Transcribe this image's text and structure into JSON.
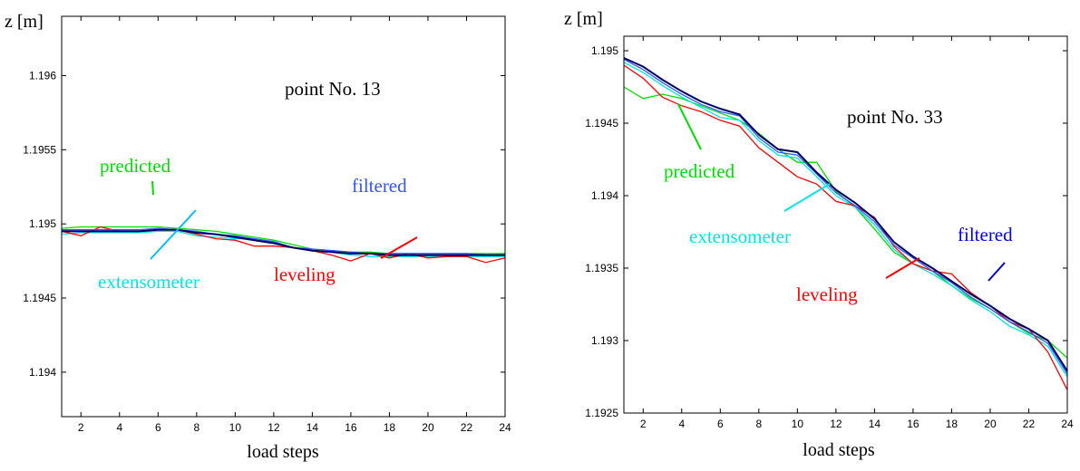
{
  "charts": [
    {
      "type": "line",
      "title": "point No. 13",
      "xlabel": "load steps",
      "ylabel": "z [m]",
      "xlim": [
        1,
        24
      ],
      "ylim": [
        1.1937,
        1.1964
      ],
      "x_ticks": [
        2,
        4,
        6,
        8,
        10,
        12,
        14,
        16,
        18,
        20,
        22,
        24
      ],
      "y_ticks": [
        1.194,
        1.1945,
        1.195,
        1.1955,
        1.196
      ],
      "y_tick_labels": [
        "1.194",
        "1.1945",
        "1.195",
        "1.1955",
        "1.196"
      ],
      "grid": false,
      "x": [
        1,
        2,
        3,
        4,
        5,
        6,
        7,
        8,
        9,
        10,
        11,
        12,
        13,
        14,
        15,
        16,
        17,
        18,
        19,
        20,
        21,
        22,
        23,
        24
      ],
      "series": [
        {
          "name": "predicted",
          "color": "#00dd00",
          "values": [
            1.19497,
            1.19498,
            1.19498,
            1.19498,
            1.19498,
            1.19498,
            1.19497,
            1.19496,
            1.19495,
            1.19493,
            1.19491,
            1.19489,
            1.19486,
            1.19483,
            1.19482,
            1.19481,
            1.19481,
            1.1948,
            1.1948,
            1.1948,
            1.1948,
            1.1948,
            1.1948,
            1.1948
          ]
        },
        {
          "name": "extensometer",
          "color": "#00e6e6",
          "values": [
            1.19493,
            1.19494,
            1.19494,
            1.19494,
            1.19494,
            1.19495,
            1.19495,
            1.19492,
            1.19491,
            1.1949,
            1.1949,
            1.19488,
            1.19484,
            1.19482,
            1.19481,
            1.19479,
            1.19478,
            1.19478,
            1.19478,
            1.19478,
            1.19478,
            1.19478,
            1.19478,
            1.19478
          ]
        },
        {
          "name": "leveling",
          "color": "#ff0000",
          "values": [
            1.19495,
            1.19492,
            1.19498,
            1.19495,
            1.19495,
            1.19496,
            1.19496,
            1.19493,
            1.1949,
            1.19489,
            1.19485,
            1.19485,
            1.19484,
            1.19482,
            1.19479,
            1.19475,
            1.1948,
            1.19477,
            1.1948,
            1.19477,
            1.19478,
            1.19478,
            1.19474,
            1.19477
          ]
        },
        {
          "name": "filtered",
          "color": "#3355ff",
          "values": [
            1.19496,
            1.19496,
            1.19496,
            1.19496,
            1.19496,
            1.19497,
            1.19496,
            1.19495,
            1.19493,
            1.19492,
            1.1949,
            1.19488,
            1.19484,
            1.19483,
            1.19482,
            1.19481,
            1.1948,
            1.1948,
            1.1948,
            1.1948,
            1.1948,
            1.1948,
            1.19479,
            1.19479
          ]
        },
        {
          "name": "",
          "color": "#000060",
          "values": [
            1.19495,
            1.19495,
            1.19495,
            1.19495,
            1.19495,
            1.19496,
            1.19496,
            1.19494,
            1.19493,
            1.19491,
            1.19489,
            1.19487,
            1.19484,
            1.19482,
            1.19481,
            1.1948,
            1.1948,
            1.19479,
            1.19479,
            1.19479,
            1.19479,
            1.19479,
            1.19479,
            1.19479
          ]
        }
      ],
      "annotations": [
        {
          "text": "point No. 13",
          "color": "#000000"
        },
        {
          "text": "predicted",
          "color": "#00dd00"
        },
        {
          "text": "filtered",
          "color": "#3355ff"
        },
        {
          "text": "extensometer",
          "color": "#00e6e6"
        },
        {
          "text": "leveling",
          "color": "#ff0000"
        }
      ]
    },
    {
      "type": "line",
      "title": "point No. 33",
      "xlabel": "load steps",
      "ylabel": "z [m]",
      "xlim": [
        1,
        24
      ],
      "ylim": [
        1.1925,
        1.1951
      ],
      "x_ticks": [
        2,
        4,
        6,
        8,
        10,
        12,
        14,
        16,
        18,
        20,
        22,
        24
      ],
      "y_ticks": [
        1.1925,
        1.193,
        1.1935,
        1.194,
        1.1945,
        1.195
      ],
      "y_tick_labels": [
        "1.1925",
        "1.193",
        "1.1935",
        "1.194",
        "1.1945",
        "1.195"
      ],
      "grid": false,
      "x": [
        1,
        2,
        3,
        4,
        5,
        6,
        7,
        8,
        9,
        10,
        11,
        12,
        13,
        14,
        15,
        16,
        17,
        18,
        19,
        20,
        21,
        22,
        23,
        24
      ],
      "series": [
        {
          "name": "predicted",
          "color": "#00dd00",
          "values": [
            1.19475,
            1.19467,
            1.1947,
            1.19467,
            1.19462,
            1.19457,
            1.19452,
            1.19443,
            1.19432,
            1.19423,
            1.19423,
            1.19403,
            1.19392,
            1.19377,
            1.19361,
            1.19353,
            1.19348,
            1.19338,
            1.19329,
            1.19322,
            1.19313,
            1.19305,
            1.193,
            1.19288
          ]
        },
        {
          "name": "extensometer",
          "color": "#00e6e6",
          "values": [
            1.19492,
            1.19485,
            1.19476,
            1.19468,
            1.19461,
            1.19454,
            1.19452,
            1.19438,
            1.19428,
            1.19426,
            1.19413,
            1.194,
            1.19392,
            1.1938,
            1.19363,
            1.19353,
            1.19346,
            1.19338,
            1.19328,
            1.1932,
            1.1931,
            1.19304,
            1.19296,
            1.19275
          ]
        },
        {
          "name": "leveling",
          "color": "#ff0000",
          "values": [
            1.1949,
            1.19481,
            1.19468,
            1.19462,
            1.19458,
            1.19452,
            1.19448,
            1.19433,
            1.19423,
            1.19413,
            1.19408,
            1.19396,
            1.19393,
            1.19385,
            1.19365,
            1.19353,
            1.19348,
            1.19346,
            1.19333,
            1.19324,
            1.19313,
            1.19308,
            1.19292,
            1.19266
          ]
        },
        {
          "name": "filtered",
          "color": "#3355ff",
          "values": [
            1.19494,
            1.19487,
            1.19478,
            1.1947,
            1.19463,
            1.19458,
            1.19455,
            1.1944,
            1.1943,
            1.19428,
            1.19415,
            1.19402,
            1.19393,
            1.19382,
            1.19366,
            1.19357,
            1.19348,
            1.1934,
            1.1933,
            1.19322,
            1.19313,
            1.19306,
            1.19298,
            1.19277
          ]
        },
        {
          "name": "",
          "color": "#000060",
          "values": [
            1.19495,
            1.19489,
            1.1948,
            1.19472,
            1.19465,
            1.1946,
            1.19456,
            1.19442,
            1.19432,
            1.1943,
            1.19416,
            1.19404,
            1.19395,
            1.19384,
            1.19368,
            1.19358,
            1.1935,
            1.19341,
            1.19332,
            1.19324,
            1.19315,
            1.19308,
            1.193,
            1.19279
          ]
        }
      ],
      "annotations": [
        {
          "text": "point No. 33",
          "color": "#000000"
        },
        {
          "text": "predicted",
          "color": "#00dd00"
        },
        {
          "text": "extensometer",
          "color": "#00e6e6"
        },
        {
          "text": "filtered",
          "color": "#0000ff"
        },
        {
          "text": "leveling",
          "color": "#ff0000"
        }
      ]
    }
  ]
}
